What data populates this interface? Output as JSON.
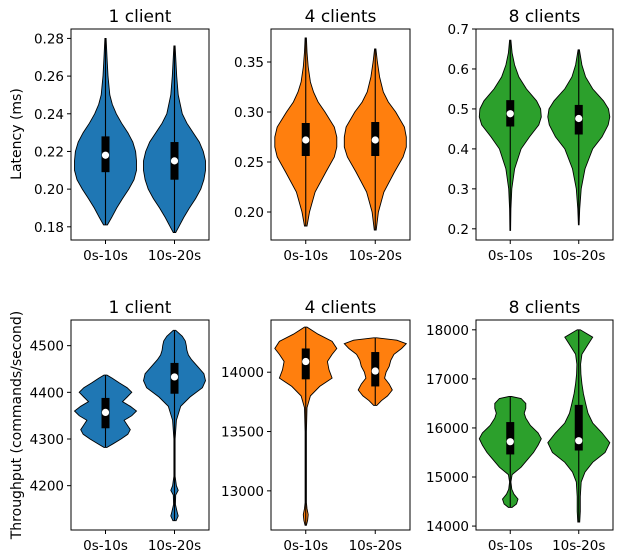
{
  "figure": {
    "ylabel_top": "Latency (ms)",
    "ylabel_bottom": "Throughput (commands/second)"
  },
  "chart_data": [
    {
      "type": "violin",
      "title": "1 client",
      "color": "#1f77b4",
      "categories": [
        "0s-10s",
        "10s-20s"
      ],
      "ylim": [
        0.173,
        0.285
      ],
      "yticks": [
        0.18,
        0.2,
        0.22,
        0.24,
        0.26,
        0.28
      ],
      "ytick_decimals": 2,
      "series": [
        {
          "min": 0.181,
          "max": 0.28,
          "q1": 0.209,
          "median": 0.218,
          "q3": 0.228,
          "density": [
            [
              0.181,
              0.06
            ],
            [
              0.185,
              0.2
            ],
            [
              0.19,
              0.36
            ],
            [
              0.195,
              0.55
            ],
            [
              0.2,
              0.75
            ],
            [
              0.205,
              0.92
            ],
            [
              0.21,
              1.0
            ],
            [
              0.215,
              1.0
            ],
            [
              0.22,
              0.97
            ],
            [
              0.225,
              0.88
            ],
            [
              0.23,
              0.72
            ],
            [
              0.235,
              0.52
            ],
            [
              0.24,
              0.35
            ],
            [
              0.245,
              0.22
            ],
            [
              0.25,
              0.14
            ],
            [
              0.26,
              0.08
            ],
            [
              0.27,
              0.05
            ],
            [
              0.28,
              0.02
            ]
          ]
        },
        {
          "min": 0.177,
          "max": 0.276,
          "q1": 0.205,
          "median": 0.215,
          "q3": 0.225,
          "density": [
            [
              0.177,
              0.04
            ],
            [
              0.18,
              0.14
            ],
            [
              0.185,
              0.3
            ],
            [
              0.19,
              0.48
            ],
            [
              0.195,
              0.68
            ],
            [
              0.2,
              0.85
            ],
            [
              0.205,
              0.95
            ],
            [
              0.21,
              1.0
            ],
            [
              0.215,
              1.0
            ],
            [
              0.22,
              0.93
            ],
            [
              0.225,
              0.8
            ],
            [
              0.23,
              0.6
            ],
            [
              0.235,
              0.4
            ],
            [
              0.24,
              0.25
            ],
            [
              0.25,
              0.12
            ],
            [
              0.26,
              0.07
            ],
            [
              0.27,
              0.04
            ],
            [
              0.276,
              0.02
            ]
          ]
        }
      ]
    },
    {
      "type": "violin",
      "title": "4 clients",
      "color": "#ff7f0e",
      "categories": [
        "0s-10s",
        "10s-20s"
      ],
      "ylim": [
        0.172,
        0.383
      ],
      "yticks": [
        0.2,
        0.25,
        0.3,
        0.35
      ],
      "ytick_decimals": 2,
      "series": [
        {
          "min": 0.186,
          "max": 0.374,
          "q1": 0.256,
          "median": 0.272,
          "q3": 0.289,
          "density": [
            [
              0.186,
              0.04
            ],
            [
              0.2,
              0.12
            ],
            [
              0.22,
              0.3
            ],
            [
              0.24,
              0.65
            ],
            [
              0.255,
              0.92
            ],
            [
              0.265,
              1.0
            ],
            [
              0.275,
              1.0
            ],
            [
              0.285,
              0.92
            ],
            [
              0.3,
              0.62
            ],
            [
              0.31,
              0.4
            ],
            [
              0.32,
              0.25
            ],
            [
              0.33,
              0.15
            ],
            [
              0.345,
              0.08
            ],
            [
              0.36,
              0.04
            ],
            [
              0.374,
              0.02
            ]
          ]
        },
        {
          "min": 0.182,
          "max": 0.363,
          "q1": 0.256,
          "median": 0.272,
          "q3": 0.29,
          "density": [
            [
              0.182,
              0.03
            ],
            [
              0.2,
              0.1
            ],
            [
              0.22,
              0.28
            ],
            [
              0.24,
              0.62
            ],
            [
              0.255,
              0.9
            ],
            [
              0.265,
              1.0
            ],
            [
              0.275,
              1.0
            ],
            [
              0.285,
              0.94
            ],
            [
              0.3,
              0.66
            ],
            [
              0.31,
              0.42
            ],
            [
              0.32,
              0.26
            ],
            [
              0.335,
              0.14
            ],
            [
              0.35,
              0.07
            ],
            [
              0.363,
              0.02
            ]
          ]
        }
      ]
    },
    {
      "type": "violin",
      "title": "8 clients",
      "color": "#2ca02c",
      "categories": [
        "0s-10s",
        "10s-20s"
      ],
      "ylim": [
        0.172,
        0.7
      ],
      "yticks": [
        0.2,
        0.3,
        0.4,
        0.5,
        0.6,
        0.7
      ],
      "ytick_decimals": 1,
      "series": [
        {
          "min": 0.196,
          "max": 0.672,
          "q1": 0.456,
          "median": 0.488,
          "q3": 0.522,
          "density": [
            [
              0.196,
              0.01
            ],
            [
              0.25,
              0.02
            ],
            [
              0.3,
              0.05
            ],
            [
              0.35,
              0.14
            ],
            [
              0.4,
              0.35
            ],
            [
              0.43,
              0.62
            ],
            [
              0.46,
              0.92
            ],
            [
              0.48,
              1.0
            ],
            [
              0.5,
              0.98
            ],
            [
              0.52,
              0.85
            ],
            [
              0.55,
              0.52
            ],
            [
              0.58,
              0.28
            ],
            [
              0.61,
              0.14
            ],
            [
              0.64,
              0.06
            ],
            [
              0.672,
              0.02
            ]
          ]
        },
        {
          "min": 0.21,
          "max": 0.648,
          "q1": 0.436,
          "median": 0.476,
          "q3": 0.51,
          "density": [
            [
              0.21,
              0.01
            ],
            [
              0.25,
              0.03
            ],
            [
              0.3,
              0.08
            ],
            [
              0.35,
              0.2
            ],
            [
              0.4,
              0.45
            ],
            [
              0.43,
              0.75
            ],
            [
              0.46,
              0.95
            ],
            [
              0.48,
              1.0
            ],
            [
              0.5,
              0.96
            ],
            [
              0.52,
              0.8
            ],
            [
              0.55,
              0.45
            ],
            [
              0.58,
              0.22
            ],
            [
              0.61,
              0.1
            ],
            [
              0.648,
              0.02
            ]
          ]
        }
      ]
    },
    {
      "type": "violin",
      "title": "1 client",
      "color": "#1f77b4",
      "categories": [
        "0s-10s",
        "10s-20s"
      ],
      "ylim": [
        4105,
        4555
      ],
      "yticks": [
        4200,
        4300,
        4400,
        4500
      ],
      "ytick_decimals": 0,
      "series": [
        {
          "min": 4282,
          "max": 4437,
          "q1": 4323,
          "median": 4357,
          "q3": 4388,
          "density": [
            [
              4282,
              0.05
            ],
            [
              4290,
              0.25
            ],
            [
              4300,
              0.5
            ],
            [
              4310,
              0.72
            ],
            [
              4320,
              0.8
            ],
            [
              4330,
              0.7
            ],
            [
              4340,
              0.6
            ],
            [
              4350,
              0.85
            ],
            [
              4360,
              1.0
            ],
            [
              4370,
              0.8
            ],
            [
              4380,
              0.55
            ],
            [
              4390,
              0.7
            ],
            [
              4400,
              0.85
            ],
            [
              4410,
              0.7
            ],
            [
              4420,
              0.45
            ],
            [
              4430,
              0.22
            ],
            [
              4437,
              0.05
            ]
          ]
        },
        {
          "min": 4125,
          "max": 4533,
          "q1": 4397,
          "median": 4433,
          "q3": 4463,
          "density": [
            [
              4125,
              0.05
            ],
            [
              4135,
              0.12
            ],
            [
              4145,
              0.08
            ],
            [
              4160,
              0.03
            ],
            [
              4180,
              0.04
            ],
            [
              4190,
              0.12
            ],
            [
              4200,
              0.06
            ],
            [
              4220,
              0.02
            ],
            [
              4300,
              0.02
            ],
            [
              4340,
              0.06
            ],
            [
              4370,
              0.2
            ],
            [
              4390,
              0.5
            ],
            [
              4410,
              0.9
            ],
            [
              4425,
              1.0
            ],
            [
              4440,
              0.95
            ],
            [
              4455,
              0.75
            ],
            [
              4470,
              0.55
            ],
            [
              4480,
              0.45
            ],
            [
              4490,
              0.4
            ],
            [
              4500,
              0.38
            ],
            [
              4510,
              0.35
            ],
            [
              4520,
              0.25
            ],
            [
              4533,
              0.04
            ]
          ]
        }
      ]
    },
    {
      "type": "violin",
      "title": "4 clients",
      "color": "#ff7f0e",
      "categories": [
        "0s-10s",
        "10s-20s"
      ],
      "ylim": [
        12670,
        14440
      ],
      "yticks": [
        13000,
        13500,
        14000
      ],
      "ytick_decimals": 0,
      "series": [
        {
          "min": 12710,
          "max": 14380,
          "q1": 13940,
          "median": 14090,
          "q3": 14200,
          "density": [
            [
              12710,
              0.02
            ],
            [
              12750,
              0.06
            ],
            [
              12800,
              0.08
            ],
            [
              12850,
              0.04
            ],
            [
              12900,
              0.02
            ],
            [
              13200,
              0.02
            ],
            [
              13500,
              0.02
            ],
            [
              13700,
              0.04
            ],
            [
              13800,
              0.15
            ],
            [
              13880,
              0.45
            ],
            [
              13950,
              0.85
            ],
            [
              14020,
              0.75
            ],
            [
              14090,
              0.7
            ],
            [
              14150,
              0.85
            ],
            [
              14200,
              1.0
            ],
            [
              14260,
              0.85
            ],
            [
              14320,
              0.4
            ],
            [
              14380,
              0.04
            ]
          ]
        },
        {
          "min": 13720,
          "max": 14290,
          "q1": 13880,
          "median": 14010,
          "q3": 14170,
          "density": [
            [
              13720,
              0.05
            ],
            [
              13760,
              0.2
            ],
            [
              13800,
              0.4
            ],
            [
              13850,
              0.55
            ],
            [
              13900,
              0.45
            ],
            [
              13950,
              0.3
            ],
            [
              14000,
              0.35
            ],
            [
              14050,
              0.45
            ],
            [
              14100,
              0.5
            ],
            [
              14150,
              0.6
            ],
            [
              14200,
              0.85
            ],
            [
              14240,
              1.0
            ],
            [
              14270,
              0.7
            ],
            [
              14290,
              0.05
            ]
          ]
        }
      ]
    },
    {
      "type": "violin",
      "title": "8 clients",
      "color": "#2ca02c",
      "categories": [
        "0s-10s",
        "10s-20s"
      ],
      "ylim": [
        13920,
        18200
      ],
      "yticks": [
        14000,
        15000,
        16000,
        17000,
        18000
      ],
      "ytick_decimals": 0,
      "series": [
        {
          "min": 14380,
          "max": 16640,
          "q1": 15460,
          "median": 15720,
          "q3": 16120,
          "density": [
            [
              14380,
              0.06
            ],
            [
              14450,
              0.2
            ],
            [
              14550,
              0.25
            ],
            [
              14650,
              0.12
            ],
            [
              14750,
              0.05
            ],
            [
              14900,
              0.02
            ],
            [
              15050,
              0.06
            ],
            [
              15200,
              0.35
            ],
            [
              15350,
              0.55
            ],
            [
              15500,
              0.75
            ],
            [
              15650,
              0.9
            ],
            [
              15780,
              1.0
            ],
            [
              15900,
              0.9
            ],
            [
              16050,
              0.65
            ],
            [
              16200,
              0.5
            ],
            [
              16300,
              0.45
            ],
            [
              16400,
              0.5
            ],
            [
              16500,
              0.5
            ],
            [
              16600,
              0.35
            ],
            [
              16640,
              0.04
            ]
          ]
        },
        {
          "min": 14080,
          "max": 18000,
          "q1": 15540,
          "median": 15740,
          "q3": 16470,
          "density": [
            [
              14080,
              0.03
            ],
            [
              14300,
              0.05
            ],
            [
              14600,
              0.05
            ],
            [
              14900,
              0.08
            ],
            [
              15100,
              0.2
            ],
            [
              15300,
              0.45
            ],
            [
              15500,
              0.85
            ],
            [
              15700,
              1.0
            ],
            [
              15900,
              0.75
            ],
            [
              16100,
              0.45
            ],
            [
              16300,
              0.3
            ],
            [
              16500,
              0.22
            ],
            [
              16700,
              0.15
            ],
            [
              16900,
              0.1
            ],
            [
              17100,
              0.07
            ],
            [
              17300,
              0.06
            ],
            [
              17500,
              0.1
            ],
            [
              17700,
              0.3
            ],
            [
              17850,
              0.45
            ],
            [
              18000,
              0.05
            ]
          ]
        }
      ]
    }
  ]
}
